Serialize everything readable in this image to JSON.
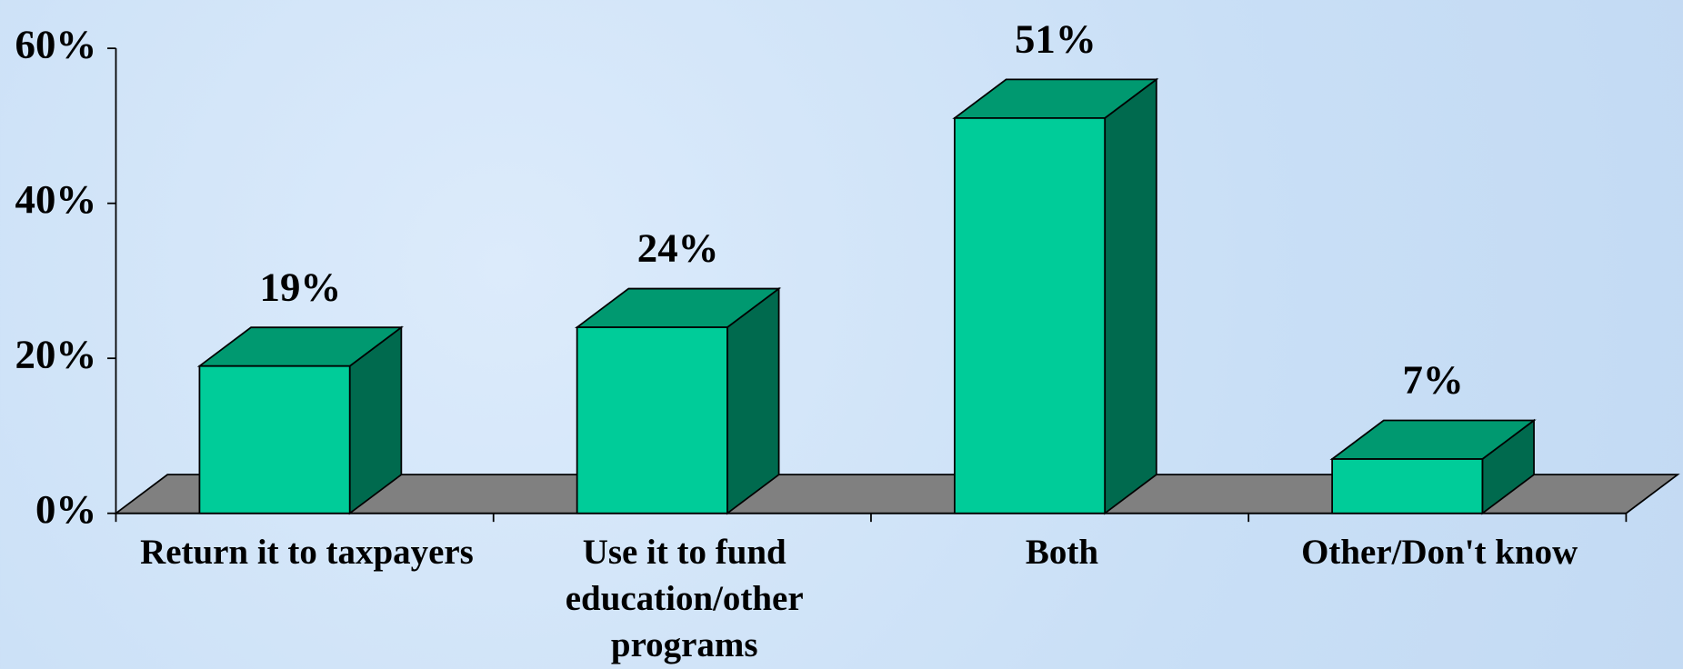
{
  "chart_data": {
    "type": "bar3d",
    "categories": [
      "Return it to taxpayers",
      "Use it to fund education/other programs",
      "Both",
      "Other/Don't know"
    ],
    "values": [
      19,
      24,
      51,
      7
    ],
    "value_labels": [
      "19%",
      "24%",
      "51%",
      "7%"
    ],
    "color": "#00cc99",
    "ylim": [
      0,
      60
    ],
    "yticks": [
      {
        "value": 0,
        "label": "0%"
      },
      {
        "value": 20,
        "label": "20%"
      },
      {
        "value": 40,
        "label": "40%"
      },
      {
        "value": 60,
        "label": "60%"
      }
    ]
  }
}
